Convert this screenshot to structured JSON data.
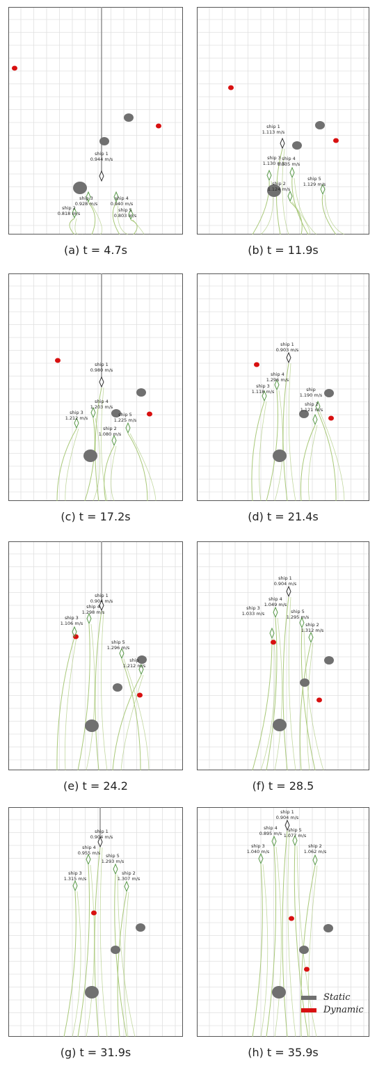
{
  "colors": {
    "static": "#707070",
    "dynamic": "#d81010",
    "trail": "#a8c878",
    "grid": "#e0e0e0",
    "heading": "#909090"
  },
  "legend": {
    "static_label": "Static",
    "dynamic_label": "Dynamic"
  },
  "panels": [
    {
      "id": "a",
      "caption": "(a) t = 4.7s",
      "ships": [
        {
          "name": "ship 1",
          "speed": "0.944 m/s"
        },
        {
          "name": "ship 2",
          "speed": "0.818 m/s"
        },
        {
          "name": "ship 3",
          "speed": "0.928 m/s"
        },
        {
          "name": "ship 4",
          "speed": "0.940 m/s"
        },
        {
          "name": "ship 5",
          "speed": "0.803 m/s"
        }
      ]
    },
    {
      "id": "b",
      "caption": "(b) t = 11.9s",
      "ships": [
        {
          "name": "ship 1",
          "speed": "1.113 m/s"
        },
        {
          "name": "ship 3",
          "speed": "1.130 m/s"
        },
        {
          "name": "ship 4",
          "speed": "1.135 m/s"
        },
        {
          "name": "ship 2",
          "speed": "1.124 m/s"
        },
        {
          "name": "ship 5",
          "speed": "1.129 m/s"
        }
      ]
    },
    {
      "id": "c",
      "caption": "(c) t = 17.2s",
      "ships": [
        {
          "name": "ship 1",
          "speed": "0.980 m/s"
        },
        {
          "name": "ship 4",
          "speed": "1.203 m/s"
        },
        {
          "name": "ship 3",
          "speed": "1.212 m/s"
        },
        {
          "name": "ship 5",
          "speed": "1.225 m/s"
        },
        {
          "name": "ship 2",
          "speed": "1.080 m/s"
        }
      ]
    },
    {
      "id": "d",
      "caption": "(d) t = 21.4s",
      "ships": [
        {
          "name": "ship 1",
          "speed": "0.903 m/s"
        },
        {
          "name": "ship 4",
          "speed": "1.296 m/s"
        },
        {
          "name": "ship 3",
          "speed": "1.118 m/s"
        },
        {
          "name": "ship",
          "speed": "1.190 m/s"
        },
        {
          "name": "ship 2",
          "speed": "1.121 m/s"
        }
      ]
    },
    {
      "id": "e",
      "caption": "(e) t = 24.2",
      "ships": [
        {
          "name": "ship 1",
          "speed": "0.904 m/s"
        },
        {
          "name": "ship 4",
          "speed": "1.298 m/s"
        },
        {
          "name": "ship 3",
          "speed": "1.106 m/s"
        },
        {
          "name": "ship 5",
          "speed": "1.296 m/s"
        },
        {
          "name": "ship",
          "speed": "1.212 m/s"
        }
      ]
    },
    {
      "id": "f",
      "caption": "(f) t = 28.5",
      "ships": [
        {
          "name": "ship 1",
          "speed": "0.904 m/s"
        },
        {
          "name": "ship 4",
          "speed": "1.049 m/s"
        },
        {
          "name": "ship 5",
          "speed": "1.295 m/s"
        },
        {
          "name": "ship 3",
          "speed": "1.033 m/s"
        },
        {
          "name": "ship 2",
          "speed": "1.312 m/s"
        }
      ]
    },
    {
      "id": "g",
      "caption": "(g) t = 31.9s",
      "ships": [
        {
          "name": "ship 1",
          "speed": "0.904 m/s"
        },
        {
          "name": "ship 4",
          "speed": "0.955 m/s"
        },
        {
          "name": "ship 5",
          "speed": "1.293 m/s"
        },
        {
          "name": "ship 3",
          "speed": "1.315 m/s"
        },
        {
          "name": "ship 2",
          "speed": "1.307 m/s"
        }
      ]
    },
    {
      "id": "h",
      "caption": "(h) t = 35.9s",
      "ships": [
        {
          "name": "ship 1",
          "speed": "0.904 m/s"
        },
        {
          "name": "ship 4",
          "speed": "0.895 m/s"
        },
        {
          "name": "ship 5",
          "speed": "1.077 m/s"
        },
        {
          "name": "ship 3",
          "speed": "1.040 m/s"
        },
        {
          "name": "ship 2",
          "speed": "1.062 m/s"
        }
      ]
    }
  ]
}
